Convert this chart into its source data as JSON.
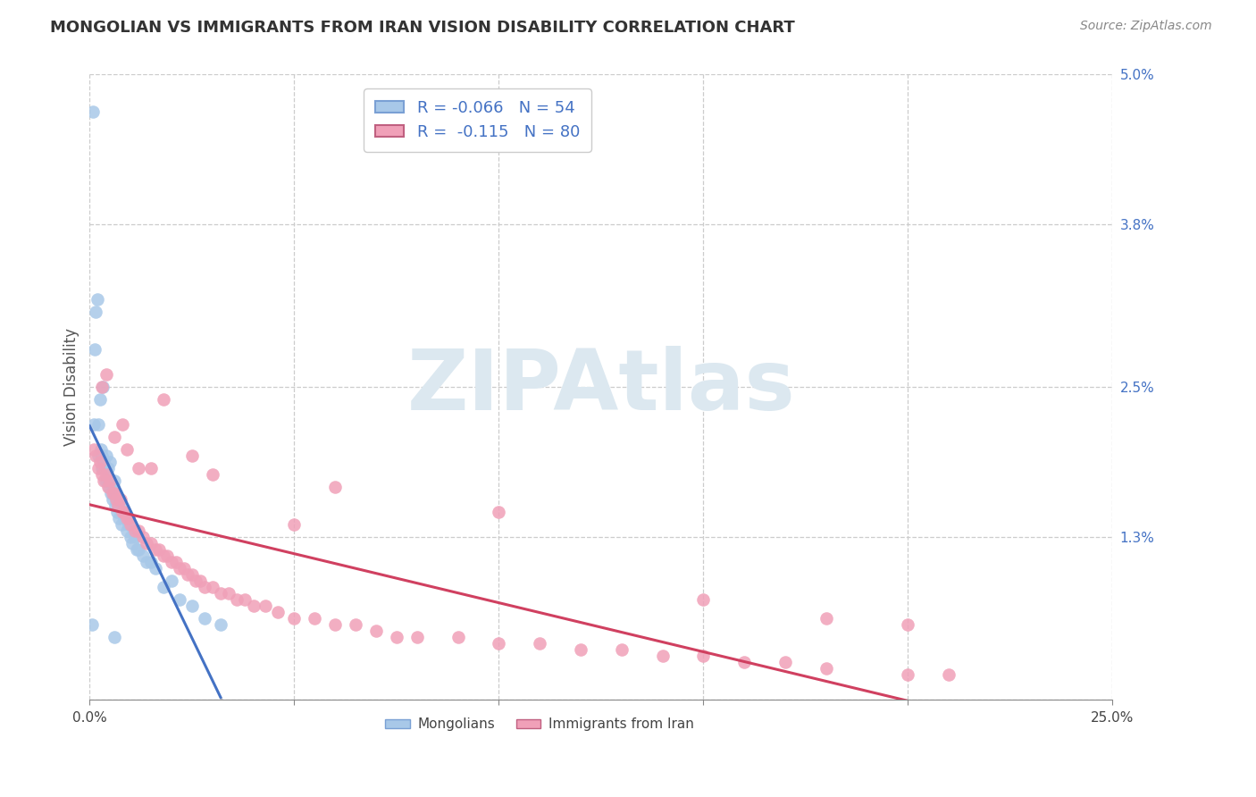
{
  "title": "MONGOLIAN VS IMMIGRANTS FROM IRAN VISION DISABILITY CORRELATION CHART",
  "source": "Source: ZipAtlas.com",
  "ylabel": "Vision Disability",
  "xlim": [
    0.0,
    0.25
  ],
  "ylim": [
    0.0,
    0.05
  ],
  "yticks": [
    0.0,
    0.013,
    0.025,
    0.038,
    0.05
  ],
  "ytick_labels": [
    "",
    "1.3%",
    "2.5%",
    "3.8%",
    "5.0%"
  ],
  "xticks": [
    0.0,
    0.05,
    0.1,
    0.15,
    0.2,
    0.25
  ],
  "xtick_labels": [
    "0.0%",
    "",
    "",
    "",
    "",
    "25.0%"
  ],
  "mongolian_R": -0.066,
  "mongolian_N": 54,
  "iran_R": -0.115,
  "iran_N": 80,
  "mongolian_color": "#a8c8e8",
  "iran_color": "#f0a0b8",
  "mongolian_line_color": "#4472c4",
  "iran_line_color": "#d04060",
  "dash_color": "#b0b8c8",
  "watermark_color": "#dce8f0",
  "mongolian_x": [
    0.0008,
    0.001,
    0.0012,
    0.0015,
    0.0018,
    0.002,
    0.0022,
    0.0025,
    0.0028,
    0.003,
    0.003,
    0.0032,
    0.0035,
    0.0038,
    0.004,
    0.004,
    0.0042,
    0.0045,
    0.0048,
    0.005,
    0.005,
    0.0052,
    0.0055,
    0.0058,
    0.006,
    0.006,
    0.0062,
    0.0065,
    0.0068,
    0.007,
    0.0072,
    0.0075,
    0.0078,
    0.008,
    0.0085,
    0.009,
    0.0095,
    0.01,
    0.0105,
    0.011,
    0.0115,
    0.012,
    0.013,
    0.014,
    0.015,
    0.016,
    0.018,
    0.02,
    0.022,
    0.025,
    0.028,
    0.032,
    0.0005,
    0.006
  ],
  "mongolian_y": [
    0.047,
    0.022,
    0.028,
    0.031,
    0.032,
    0.0195,
    0.022,
    0.024,
    0.02,
    0.0195,
    0.0185,
    0.025,
    0.019,
    0.0175,
    0.0195,
    0.0185,
    0.0175,
    0.0185,
    0.017,
    0.0175,
    0.019,
    0.0165,
    0.016,
    0.017,
    0.0175,
    0.0165,
    0.0155,
    0.016,
    0.015,
    0.0155,
    0.0145,
    0.0155,
    0.014,
    0.015,
    0.0145,
    0.0135,
    0.014,
    0.013,
    0.0125,
    0.013,
    0.012,
    0.012,
    0.0115,
    0.011,
    0.011,
    0.0105,
    0.009,
    0.0095,
    0.008,
    0.0075,
    0.0065,
    0.006,
    0.006,
    0.005
  ],
  "iran_x": [
    0.001,
    0.0015,
    0.002,
    0.0025,
    0.003,
    0.0035,
    0.004,
    0.0045,
    0.005,
    0.0055,
    0.006,
    0.0065,
    0.007,
    0.0075,
    0.008,
    0.0085,
    0.009,
    0.0095,
    0.01,
    0.011,
    0.012,
    0.013,
    0.014,
    0.015,
    0.016,
    0.017,
    0.018,
    0.019,
    0.02,
    0.021,
    0.022,
    0.023,
    0.024,
    0.025,
    0.026,
    0.027,
    0.028,
    0.03,
    0.032,
    0.034,
    0.036,
    0.038,
    0.04,
    0.043,
    0.046,
    0.05,
    0.055,
    0.06,
    0.065,
    0.07,
    0.075,
    0.08,
    0.09,
    0.1,
    0.11,
    0.12,
    0.13,
    0.14,
    0.15,
    0.16,
    0.17,
    0.18,
    0.2,
    0.21,
    0.003,
    0.006,
    0.009,
    0.012,
    0.018,
    0.025,
    0.06,
    0.1,
    0.15,
    0.18,
    0.004,
    0.008,
    0.015,
    0.03,
    0.05,
    0.2
  ],
  "iran_y": [
    0.02,
    0.0195,
    0.0185,
    0.019,
    0.018,
    0.0175,
    0.018,
    0.017,
    0.0175,
    0.0165,
    0.0165,
    0.016,
    0.0155,
    0.016,
    0.015,
    0.015,
    0.0145,
    0.0145,
    0.014,
    0.0135,
    0.0135,
    0.013,
    0.0125,
    0.0125,
    0.012,
    0.012,
    0.0115,
    0.0115,
    0.011,
    0.011,
    0.0105,
    0.0105,
    0.01,
    0.01,
    0.0095,
    0.0095,
    0.009,
    0.009,
    0.0085,
    0.0085,
    0.008,
    0.008,
    0.0075,
    0.0075,
    0.007,
    0.0065,
    0.0065,
    0.006,
    0.006,
    0.0055,
    0.005,
    0.005,
    0.005,
    0.0045,
    0.0045,
    0.004,
    0.004,
    0.0035,
    0.0035,
    0.003,
    0.003,
    0.0025,
    0.002,
    0.002,
    0.025,
    0.021,
    0.02,
    0.0185,
    0.024,
    0.0195,
    0.017,
    0.015,
    0.008,
    0.0065,
    0.026,
    0.022,
    0.0185,
    0.018,
    0.014,
    0.006
  ]
}
